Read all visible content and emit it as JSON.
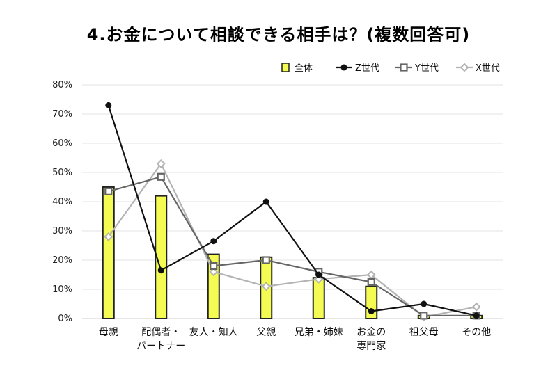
{
  "chart_data": {
    "type": "bar",
    "title": "4.お金について相談できる相手は？(複数回答可)",
    "categories": [
      [
        "母親"
      ],
      [
        "配偶者・",
        "パートナー"
      ],
      [
        "友人・知人"
      ],
      [
        "父親"
      ],
      [
        "兄弟・姉妹"
      ],
      [
        "お金の",
        "専門家"
      ],
      [
        "祖父母"
      ],
      [
        "その他"
      ]
    ],
    "yticks": [
      "0%",
      "10%",
      "20%",
      "30%",
      "40%",
      "50%",
      "60%",
      "70%",
      "80%"
    ],
    "ylim": [
      0,
      80
    ],
    "grid": true,
    "legend_position": "top-right",
    "series": [
      {
        "name": "全体",
        "kind": "bar",
        "color": "#f4fc54",
        "stroke": "#222222",
        "values": [
          45,
          42,
          22,
          21,
          14,
          11,
          1,
          1
        ]
      },
      {
        "name": "Z世代",
        "kind": "line",
        "marker": "circle",
        "color": "#111111",
        "values": [
          73,
          16.5,
          26.5,
          40,
          15,
          2.5,
          5,
          1
        ]
      },
      {
        "name": "Y世代",
        "kind": "line",
        "marker": "square",
        "color": "#666666",
        "values": [
          43.5,
          48.5,
          18,
          20,
          16,
          12.5,
          1,
          1
        ]
      },
      {
        "name": "X世代",
        "kind": "line",
        "marker": "diamond",
        "color": "#b3b3b3",
        "values": [
          28,
          53,
          16,
          11,
          13.5,
          15,
          0.5,
          4
        ]
      }
    ]
  }
}
